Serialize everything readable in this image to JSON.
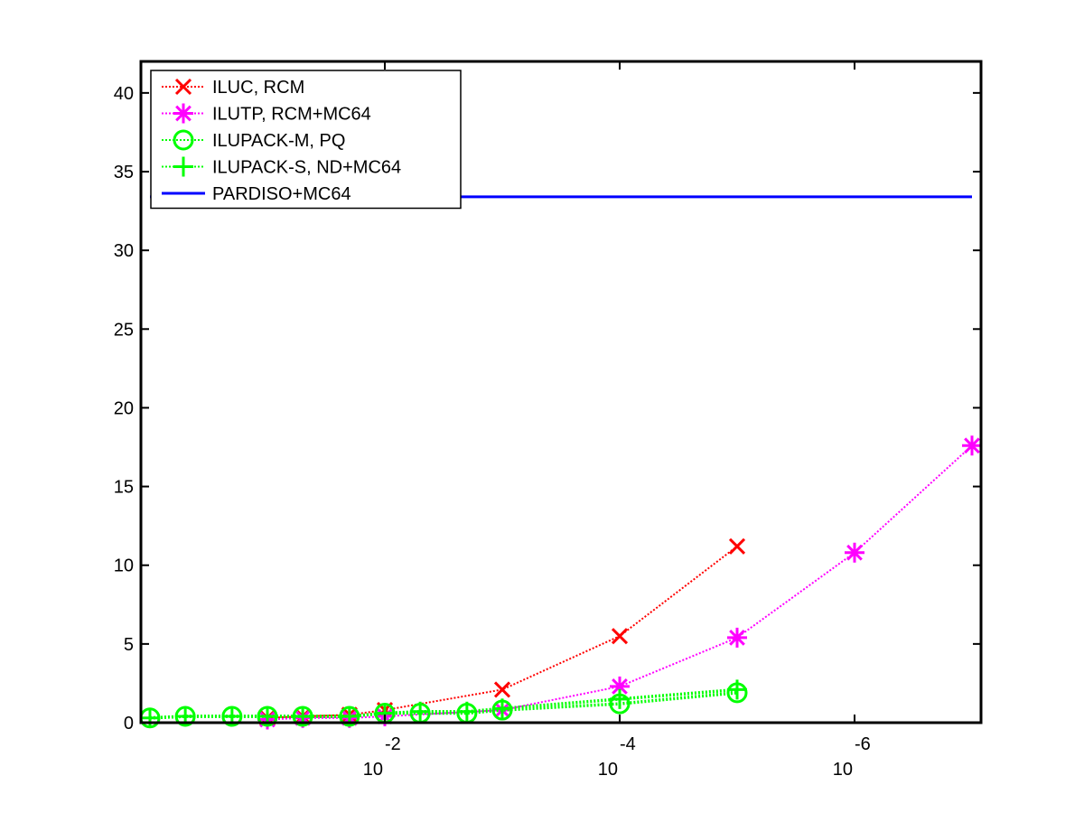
{
  "chart_data": {
    "type": "line",
    "title": "",
    "xlabel": "",
    "ylabel": "",
    "x_scale": "log",
    "x_reversed": true,
    "xlim": [
      1,
      1e-07
    ],
    "ylim": [
      0,
      42
    ],
    "grid": false,
    "legend_position": "top-left",
    "x_ticks": [
      {
        "value": 0.01,
        "base": "10",
        "exp": "-2"
      },
      {
        "value": 0.0001,
        "base": "10",
        "exp": "-4"
      },
      {
        "value": 1e-06,
        "base": "10",
        "exp": "-6"
      }
    ],
    "y_ticks": [
      0,
      5,
      10,
      15,
      20,
      25,
      30,
      35,
      40
    ],
    "series": [
      {
        "name": "ILUC, RCM",
        "color": "#ff0000",
        "line_style": "dotted",
        "marker": "x",
        "points": [
          [
            0.1,
            0.3
          ],
          [
            0.05,
            0.4
          ],
          [
            0.02,
            0.5
          ],
          [
            0.01,
            0.8
          ],
          [
            0.001,
            2.1
          ],
          [
            0.0001,
            5.5
          ],
          [
            1e-05,
            11.2
          ]
        ]
      },
      {
        "name": "ILUTP, RCM+MC64",
        "color": "#ff00ff",
        "line_style": "dotted",
        "marker": "asterisk",
        "points": [
          [
            0.1,
            0.2
          ],
          [
            0.05,
            0.3
          ],
          [
            0.02,
            0.3
          ],
          [
            0.01,
            0.4
          ],
          [
            0.001,
            0.8
          ],
          [
            0.0001,
            2.3
          ],
          [
            1e-05,
            5.4
          ],
          [
            1e-06,
            10.8
          ],
          [
            1e-07,
            17.6
          ]
        ]
      },
      {
        "name": "ILUPACK-M, PQ",
        "color": "#00ff00",
        "line_style": "dotted",
        "marker": "circle",
        "points": [
          [
            1,
            0.3
          ],
          [
            0.5,
            0.4
          ],
          [
            0.2,
            0.4
          ],
          [
            0.1,
            0.4
          ],
          [
            0.05,
            0.4
          ],
          [
            0.02,
            0.4
          ],
          [
            0.01,
            0.6
          ],
          [
            0.005,
            0.6
          ],
          [
            0.002,
            0.6
          ],
          [
            0.001,
            0.8
          ],
          [
            0.0001,
            1.2
          ],
          [
            1e-05,
            1.9
          ]
        ]
      },
      {
        "name": "ILUPACK-S, ND+MC64",
        "color": "#00ff00",
        "line_style": "dotted",
        "marker": "plus",
        "points": [
          [
            1,
            0.3
          ],
          [
            0.5,
            0.4
          ],
          [
            0.2,
            0.4
          ],
          [
            0.1,
            0.4
          ],
          [
            0.05,
            0.4
          ],
          [
            0.02,
            0.4
          ],
          [
            0.01,
            0.6
          ],
          [
            0.005,
            0.7
          ],
          [
            0.002,
            0.7
          ],
          [
            0.001,
            0.9
          ],
          [
            0.0001,
            1.5
          ],
          [
            1e-05,
            2.1
          ]
        ]
      },
      {
        "name": "PARDISO+MC64",
        "color": "#0000ff",
        "line_style": "solid",
        "marker": "none",
        "points": [
          [
            1,
            33.4
          ],
          [
            1e-07,
            33.4
          ]
        ]
      }
    ]
  }
}
